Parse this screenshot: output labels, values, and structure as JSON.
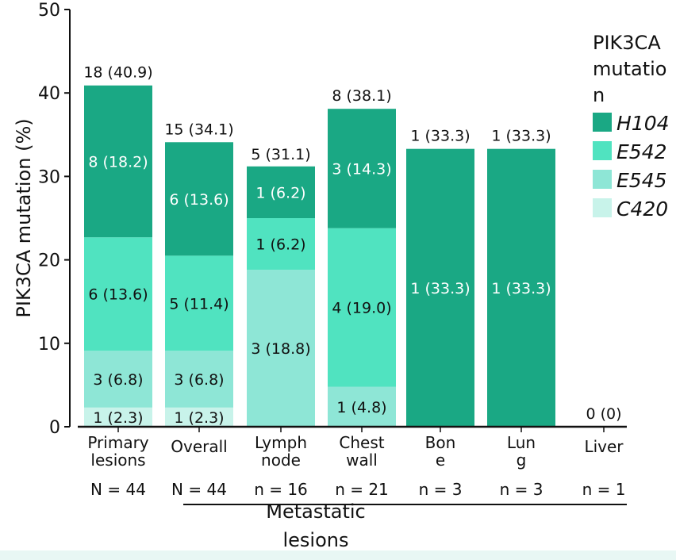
{
  "chart_data": {
    "type": "bar",
    "stacked": true,
    "ylabel": "PIK3CA mutation (%)",
    "ylim": [
      0,
      50
    ],
    "yticks": [
      0,
      10,
      20,
      30,
      40,
      50
    ],
    "grid": false,
    "legend": {
      "title_lines": [
        "PIK3CA",
        "mutatio",
        "n"
      ],
      "placement": "right",
      "entries": [
        "H104",
        "E542",
        "E545",
        "C420"
      ]
    },
    "colors": {
      "H104": "#1aa884",
      "E542": "#50e3c0",
      "E545": "#8ee6d6",
      "C420": "#c8f3ea"
    },
    "categories": [
      {
        "label_lines": [
          "Primary",
          "lesions"
        ],
        "n": "N = 44",
        "total": 40.9,
        "total_label": "18 (40.9)",
        "segments": [
          {
            "series": "C420",
            "value": 2.3,
            "label": "1 (2.3)"
          },
          {
            "series": "E545",
            "value": 6.8,
            "label": "3 (6.8)"
          },
          {
            "series": "E542",
            "value": 13.6,
            "label": "6 (13.6)"
          },
          {
            "series": "H104",
            "value": 18.2,
            "label": "8 (18.2)"
          }
        ]
      },
      {
        "label_lines": [
          "Overall"
        ],
        "n": "N = 44",
        "total": 34.1,
        "total_label": "15 (34.1)",
        "segments": [
          {
            "series": "C420",
            "value": 2.3,
            "label": "1 (2.3)"
          },
          {
            "series": "E545",
            "value": 6.8,
            "label": "3 (6.8)"
          },
          {
            "series": "E542",
            "value": 11.4,
            "label": "5 (11.4)"
          },
          {
            "series": "H104",
            "value": 13.6,
            "label": "6 (13.6)"
          }
        ]
      },
      {
        "label_lines": [
          "Lymph",
          "node"
        ],
        "n": "n = 16",
        "total": 31.1,
        "total_label": "5 (31.1)",
        "segments": [
          {
            "series": "E545",
            "value": 18.8,
            "label": "3 (18.8)"
          },
          {
            "series": "E542",
            "value": 6.2,
            "label": "1 (6.2)"
          },
          {
            "series": "H104",
            "value": 6.2,
            "label": "1 (6.2)"
          }
        ]
      },
      {
        "label_lines": [
          "Chest",
          "wall"
        ],
        "n": "n = 21",
        "total": 38.1,
        "total_label": "8 (38.1)",
        "segments": [
          {
            "series": "E545",
            "value": 4.8,
            "label": "1 (4.8)"
          },
          {
            "series": "E542",
            "value": 19.0,
            "label": "4 (19.0)"
          },
          {
            "series": "H104",
            "value": 14.3,
            "label": "3 (14.3)"
          }
        ]
      },
      {
        "label_lines": [
          "Bon",
          "e"
        ],
        "n": "n = 3",
        "total": 33.3,
        "total_label": "1 (33.3)",
        "segments": [
          {
            "series": "H104",
            "value": 33.3,
            "label": "1 (33.3)"
          }
        ]
      },
      {
        "label_lines": [
          "Lun",
          "g"
        ],
        "n": "n = 3",
        "total": 33.3,
        "total_label": "1 (33.3)",
        "segments": [
          {
            "series": "H104",
            "value": 33.3,
            "label": "1 (33.3)"
          }
        ]
      },
      {
        "label_lines": [
          "Liver"
        ],
        "n": "n = 1",
        "total": 0,
        "total_label": "0 (0)",
        "segments": []
      }
    ],
    "group_label_lines": [
      "Metastatic",
      "lesions"
    ]
  }
}
